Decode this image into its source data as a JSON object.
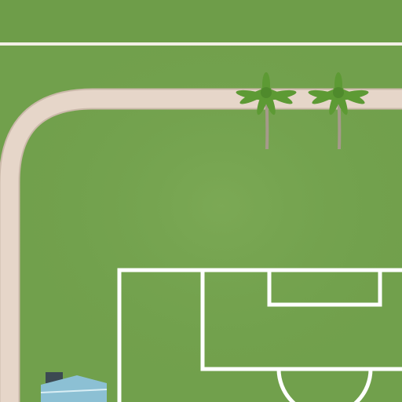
{
  "scene": {
    "colors": {
      "grass": "#71a04c",
      "grass_top": "#6e9d49",
      "grass_light": "#80ad58",
      "path": "#e6d6c9",
      "path_edge": "#cbb9aa",
      "pitch_lines": "#ffffff",
      "palm_leaf": "#5d9a34",
      "palm_trunk": "#a59a8a",
      "roof_blue": "#8cc0d4",
      "roof_dark": "#3c4a52"
    },
    "objects": {
      "palm_trees": 2,
      "football_pitch": "partial",
      "walkway": "curved",
      "building": "partial-roof"
    }
  }
}
